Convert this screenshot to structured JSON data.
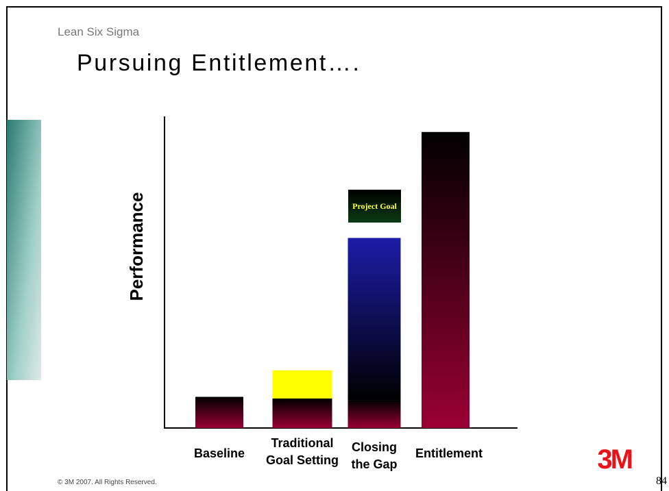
{
  "header": {
    "subtitle": "Lean Six Sigma",
    "title": "Pursuing Entitlement…."
  },
  "chart_data": {
    "type": "bar",
    "stacked": true,
    "y_label": "Performance",
    "categories": [
      "Baseline",
      "Traditional Goal Setting",
      "Closing the Gap",
      "Entitlement"
    ],
    "series": [
      {
        "color": "#9a0033",
        "values": [
          10,
          9.5,
          9,
          95
        ]
      },
      {
        "color": "#ffff00",
        "values": [
          null,
          9,
          null,
          null
        ]
      },
      {
        "color": "#1c1ca8",
        "values": [
          null,
          null,
          52,
          null
        ]
      }
    ],
    "ylim": [
      0,
      100
    ],
    "annotation": "Project Goal"
  },
  "footer": {
    "copyright": "© 3M 2007.  All Rights Reserved.",
    "logo": "3M",
    "page_number": "84"
  }
}
